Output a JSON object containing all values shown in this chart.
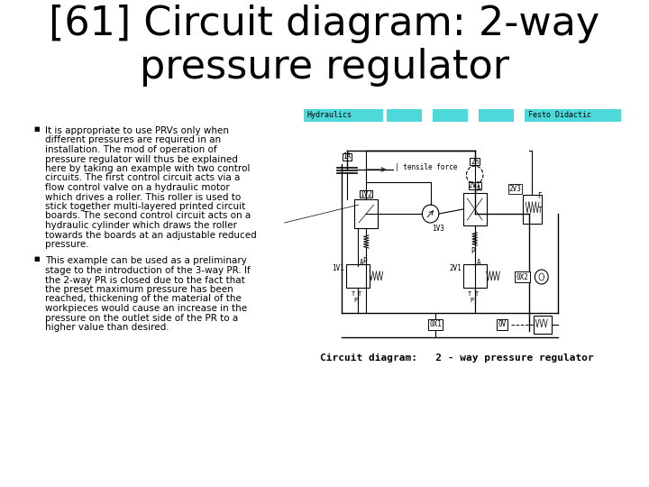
{
  "title": "[61] Circuit diagram: 2-way\npressure regulator",
  "title_fontsize": 32,
  "title_color": "#000000",
  "bg_color": "#ffffff",
  "bullet1_lines": [
    "It is appropriate to use PRVs only when",
    "different pressures are required in an",
    "installation. The mod of operation of",
    "pressure regulator will thus be explained",
    "here by taking an example with two control",
    "circuits. The first control circuit acts via a",
    "flow control valve on a hydraulic motor",
    "which drives a roller. This roller is used to",
    "stick together multi-layered printed circuit",
    "boards. The second control circuit acts on a",
    "hydraulic cylinder which draws the roller",
    "towards the boards at an adjustable reduced",
    "pressure."
  ],
  "bullet2_lines": [
    "This example can be used as a preliminary",
    "stage to the introduction of the 3-way PR. If",
    "the 2-way PR is closed due to the fact that",
    "the preset maximum pressure has been",
    "reached, thickening of the material of the",
    "workpieces would cause an increase in the",
    "pressure on the outlet side of the PR to a",
    "higher value than desired."
  ],
  "bullet_fontsize": 7.5,
  "diagram_caption": "Circuit diagram:   2 - way pressure regulator",
  "header_cyan": "#4dd9d9",
  "header_text_left": "Hydraulics",
  "header_text_right": "Festo Didactic"
}
